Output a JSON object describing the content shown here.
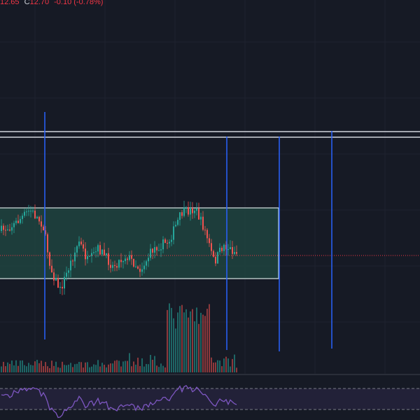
{
  "header": {
    "low": "12.65",
    "close_label": "C",
    "close": "12.70",
    "change": "-0.10 (-0.78%)"
  }
}
